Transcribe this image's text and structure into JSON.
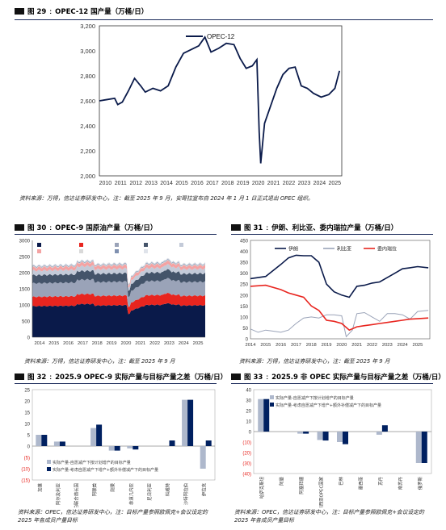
{
  "sections": {
    "fig29": {
      "label": "图 29",
      "title": "OPEC-12 国产量（万桶/日）",
      "source": "资料来源：万得，信达证券研发中心，注：截至 2025 年 9 月，安哥拉宣布自 2024 年 1 月 1 日正式退出 OPEC 组织。"
    },
    "fig30": {
      "label": "图 30",
      "title": "OPEC-9 国原油产量（万桶/日）",
      "source": "资料来源：万得，信达证券研发中心，注：截至 2025 年 9 月"
    },
    "fig31": {
      "label": "图 31",
      "title": "伊朗、利比亚、委内瑞拉产量（万桶/日）",
      "source": "资料来源：万得，信达证券研发中心，注：截至 2025 年 9 月"
    },
    "fig32": {
      "label": "图 32",
      "title": "2025.9 OPEC-9 实际产量与目标产量之差（万桶/日）",
      "source": "资料来源：OPEC，信达证券研发中心，注：目标产量参照欧佩克+会议设定的 2025 年各成员产量目标"
    },
    "fig33": {
      "label": "图 33",
      "title": "2025.9 非 OPEC 实际产量与目标产量之差（万桶/日）",
      "source": "资料来源：OPEC，信达证券研发中心，注：目标产量参照欧佩克+会议设定的 2025 年各成员产量目标"
    }
  },
  "colors": {
    "navy": "#0a1a4a",
    "red": "#e8251f",
    "gray": "#9aa3b8",
    "lightblue": "#aeb8cc",
    "darkblue": "#002060"
  },
  "chart_data": [
    {
      "id": "fig29",
      "type": "line",
      "x_ticks": [
        "2010",
        "2011",
        "2012",
        "2013",
        "2014",
        "2015",
        "2016",
        "2017",
        "2018",
        "2019",
        "2020",
        "2021",
        "2022",
        "2023",
        "2024",
        "2025"
      ],
      "y_ticks": [
        "2,000",
        "2,200",
        "2,400",
        "2,600",
        "2,800",
        "3,000",
        "3,200"
      ],
      "ylim": [
        2000,
        3200
      ],
      "series": [
        {
          "name": "OPEC-12",
          "x": [
            2010.0,
            2010.5,
            2011.0,
            2011.2,
            2011.5,
            2011.9,
            2012.3,
            2012.7,
            2013.0,
            2013.5,
            2014.0,
            2014.5,
            2015.0,
            2015.5,
            2016.0,
            2016.5,
            2016.9,
            2017.3,
            2017.8,
            2018.3,
            2018.8,
            2019.2,
            2019.6,
            2020.0,
            2020.3,
            2020.45,
            2020.55,
            2020.8,
            2021.2,
            2021.6,
            2022.0,
            2022.4,
            2022.8,
            2023.2,
            2023.6,
            2024.0,
            2024.5,
            2025.0,
            2025.4,
            2025.7
          ],
          "values": [
            2600,
            2610,
            2620,
            2570,
            2590,
            2680,
            2780,
            2720,
            2670,
            2700,
            2680,
            2720,
            2870,
            2980,
            3010,
            3040,
            3110,
            2990,
            3020,
            3060,
            3050,
            2940,
            2860,
            2880,
            2930,
            2350,
            2100,
            2420,
            2560,
            2700,
            2810,
            2860,
            2870,
            2720,
            2700,
            2660,
            2630,
            2650,
            2700,
            2840
          ]
        }
      ]
    },
    {
      "id": "fig30",
      "type": "area",
      "x_ticks": [
        "2014",
        "2015",
        "2016",
        "2017",
        "2018",
        "2019",
        "2020",
        "2021",
        "2022",
        "2023",
        "2024",
        "2025"
      ],
      "y_ticks": [
        "0",
        "500",
        "1000",
        "1500",
        "2000",
        "2500",
        "3000"
      ],
      "ylim": [
        0,
        3000
      ],
      "series": [
        {
          "name": "沙特阿拉伯",
          "color": "#0a1a4a",
          "value": 960
        },
        {
          "name": "阿联酋",
          "color": "#e8251f",
          "value": 290
        },
        {
          "name": "伊拉克",
          "color": "#9aa3b8",
          "value": 420
        },
        {
          "name": "科威特",
          "color": "#44546a",
          "value": 250
        },
        {
          "name": "尼日利亚",
          "color": "#c3cad8",
          "value": 140
        },
        {
          "name": "阿尔及利亚",
          "color": "#f4a3a3",
          "value": 100
        },
        {
          "name": "赤道几内亚",
          "color": "#d9d9d9",
          "value": 20
        },
        {
          "name": "加蓬",
          "color": "#7f90b0",
          "value": 20
        },
        {
          "name": "刚果(布)",
          "color": "#dfe3ea",
          "value": 30
        }
      ]
    },
    {
      "id": "fig31",
      "type": "line",
      "x_ticks": [
        "2014",
        "2015",
        "2016",
        "2017",
        "2018",
        "2019",
        "2020",
        "2021",
        "2022",
        "2023",
        "2024",
        "2025"
      ],
      "y_ticks": [
        "0",
        "50",
        "100",
        "150",
        "200",
        "250",
        "300",
        "350",
        "400",
        "450"
      ],
      "ylim": [
        0,
        450
      ],
      "series": [
        {
          "name": "伊朗",
          "color": "#0a1a4a",
          "x": [
            2014,
            2015,
            2016,
            2016.5,
            2017,
            2017.5,
            2018,
            2018.5,
            2019,
            2019.5,
            2020,
            2020.5,
            2021,
            2021.5,
            2022,
            2022.5,
            2023,
            2023.5,
            2024,
            2024.5,
            2025,
            2025.7
          ],
          "values": [
            275,
            285,
            340,
            370,
            382,
            380,
            380,
            350,
            250,
            215,
            200,
            190,
            240,
            245,
            255,
            260,
            280,
            300,
            320,
            325,
            330,
            325
          ]
        },
        {
          "name": "利比亚",
          "color": "#9aa3b8",
          "x": [
            2014,
            2014.5,
            2015,
            2015.5,
            2016,
            2016.5,
            2017,
            2017.5,
            2018,
            2018.5,
            2019,
            2019.5,
            2020,
            2020.3,
            2020.7,
            2021,
            2021.5,
            2022,
            2022.5,
            2023,
            2023.5,
            2024,
            2024.5,
            2025,
            2025.7
          ],
          "values": [
            45,
            30,
            40,
            35,
            30,
            40,
            70,
            95,
            100,
            95,
            110,
            110,
            105,
            10,
            40,
            115,
            120,
            100,
            80,
            115,
            115,
            110,
            90,
            125,
            130
          ]
        },
        {
          "name": "委内瑞拉",
          "color": "#e8251f",
          "x": [
            2014,
            2015,
            2016,
            2016.5,
            2017,
            2017.5,
            2018,
            2018.5,
            2019,
            2019.5,
            2020,
            2020.5,
            2021,
            2021.5,
            2022,
            2022.5,
            2023,
            2023.5,
            2024,
            2024.5,
            2025,
            2025.7
          ],
          "values": [
            240,
            245,
            225,
            210,
            200,
            190,
            150,
            130,
            85,
            80,
            70,
            40,
            55,
            60,
            65,
            70,
            75,
            80,
            85,
            90,
            92,
            95
          ]
        }
      ]
    },
    {
      "id": "fig32",
      "type": "bar",
      "categories": [
        "加蓬",
        "阿尔及利亚",
        "阿拉伯联合酋长国",
        "阿联酋",
        "刚果",
        "赤道几内亚",
        "尼日利亚",
        "科威特",
        "沙特阿拉伯",
        "伊拉克"
      ],
      "y_ticks": [
        "(15)",
        "(10)",
        "(5)",
        "0",
        "5",
        "10",
        "15",
        "20",
        "25"
      ],
      "ylim": [
        -15,
        25
      ],
      "series": [
        {
          "name": "实际产量-自愿减产下按计划增产的目标产量",
          "color": "#aeb8cc",
          "values": [
            5,
            2,
            0,
            8,
            -2,
            -1,
            0,
            0,
            20.5,
            -10
          ]
        },
        {
          "name": "实际产量-考虑自愿减产下增产+额外补偿减产下的目标产量",
          "color": "#002060",
          "values": [
            5,
            2,
            0,
            9.5,
            -2,
            -1.5,
            0,
            2.5,
            20.5,
            2.5
          ]
        }
      ]
    },
    {
      "id": "fig33",
      "type": "bar",
      "categories": [
        "哈萨克斯坦",
        "阿曼",
        "阿塞拜疆",
        "马来西亚OPEC国家",
        "巴林",
        "墨西哥",
        "苏丹",
        "南苏丹",
        "俄罗斯"
      ],
      "y_ticks": [
        "(40)",
        "(30)",
        "(20)",
        "(10)",
        "0",
        "10",
        "20",
        "30",
        "40"
      ],
      "ylim": [
        -40,
        40
      ],
      "series": [
        {
          "name": "实际产量-自愿减产下按计划增产的目标产量",
          "color": "#aeb8cc",
          "values": [
            31,
            0,
            -2,
            -8,
            -10,
            0,
            -3,
            0,
            -30
          ]
        },
        {
          "name": "实际产量-考虑自愿减产下增产+额外补偿减产下的目标产量",
          "color": "#002060",
          "values": [
            31,
            0,
            -2,
            -8.5,
            -12,
            0,
            6,
            0,
            -30
          ]
        }
      ]
    }
  ]
}
